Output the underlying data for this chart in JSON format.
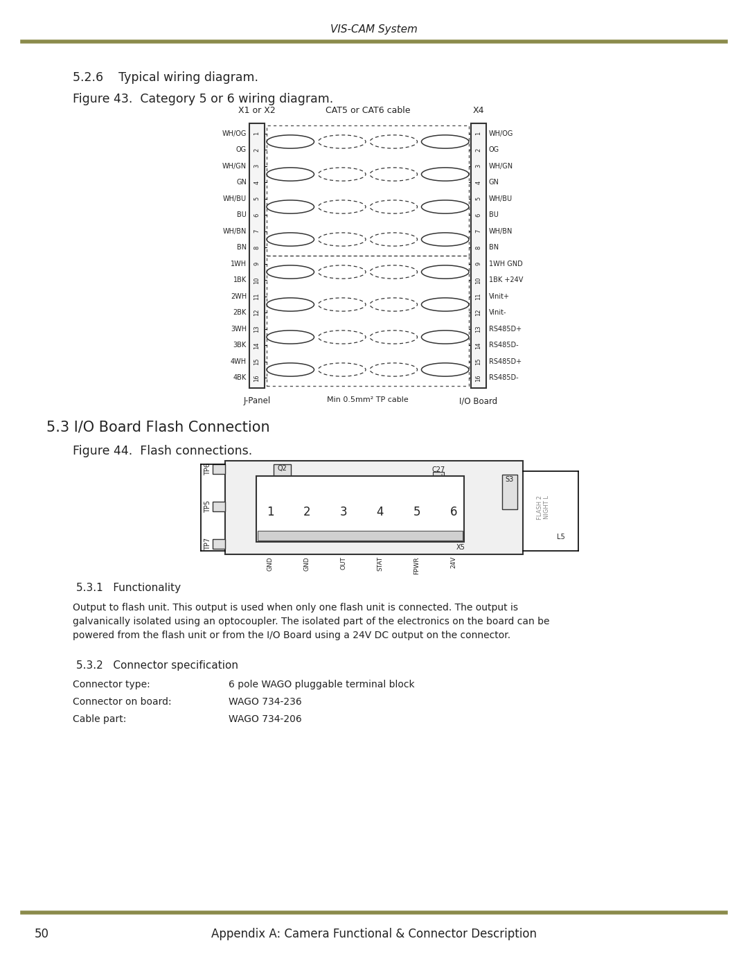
{
  "page_title": "VIS-CAM System",
  "footer_line_color": "#8B8B4B",
  "footer_text": "Appendix A: Camera Functional & Connector Description",
  "footer_page": "50",
  "section_title": "5.2.6    Typical wiring diagram.",
  "figure43_title": "Figure 43.  Category 5 or 6 wiring diagram.",
  "section2_title": "5.3 I/O Board Flash Connection",
  "figure44_title": "Figure 44.  Flash connections.",
  "section31_title": "5.3.1   Functionality",
  "section31_body": "Output to flash unit. This output is used when only one flash unit is connected. The output is\ngalvanically isolated using an optocoupler. The isolated part of the electronics on the board can be\npowered from the flash unit or from the I/O Board using a 24V DC output on the connector.",
  "section32_title": "5.3.2   Connector specification",
  "connector_rows": [
    [
      "Connector type:",
      "6 pole WAGO pluggable terminal block"
    ],
    [
      "Connector on board:",
      "WAGO 734-236"
    ],
    [
      "Cable part:",
      "WAGO 734-206"
    ]
  ],
  "left_labels": [
    "WH/OG",
    "OG",
    "WH/GN",
    "GN",
    "WH/BU",
    "BU",
    "WH/BN",
    "BN",
    "1WH",
    "1BK",
    "2WH",
    "2BK",
    "3WH",
    "3BK",
    "4WH",
    "4BK"
  ],
  "right_labels": [
    "WH/OG",
    "OG",
    "WH/GN",
    "GN",
    "WH/BU",
    "BU",
    "WH/BN",
    "BN",
    "1WH GND",
    "1BK +24V",
    "Vinit+",
    "Vinit-",
    "RS485D+",
    "RS485D-",
    "RS485D+",
    "RS485D-"
  ],
  "pin_numbers": [
    "1",
    "2",
    "3",
    "4",
    "5",
    "6",
    "7",
    "8",
    "9",
    "10",
    "11",
    "12",
    "13",
    "14",
    "15",
    "16"
  ],
  "x1_label": "X1 or X2",
  "x4_label": "X4",
  "cable_label": "CAT5 or CAT6 cable",
  "jpanel_label": "J-Panel",
  "iob_label": "I/O Board",
  "min_cable_label": "Min 0.5mm² TP cable",
  "bg_color": "#ffffff",
  "text_color": "#222222",
  "olive_color": "#8B8B4B"
}
